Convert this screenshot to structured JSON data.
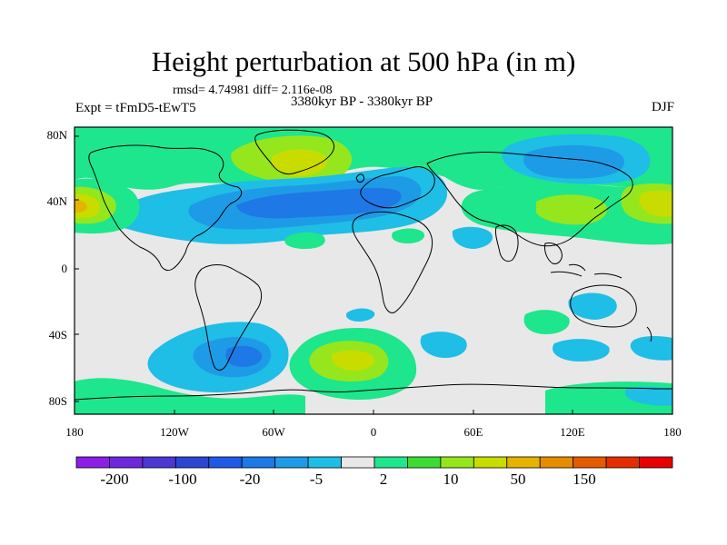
{
  "title": "Height perturbation at 500 hPa (in m)",
  "stats": "rmsd= 4.74981 diff= 2.116e-08",
  "experiment": "Expt = tFmD5-tEwT5",
  "period": "3380kyr BP - 3380kyr BP",
  "season": "DJF",
  "lat_ticks": [
    "80N",
    "40N",
    "0",
    "40S",
    "80S"
  ],
  "lon_ticks": [
    "180",
    "120W",
    "60W",
    "0",
    "60E",
    "120E",
    "180"
  ],
  "colorbar": {
    "labels": [
      "-200",
      "-100",
      "-20",
      "-5",
      "2",
      "10",
      "50",
      "150"
    ],
    "colors": [
      "#8c1ee6",
      "#6e28dc",
      "#4b37d2",
      "#2d46d2",
      "#1e5ae6",
      "#1e78e6",
      "#1e9be6",
      "#1ebee6",
      "#e8e8e8",
      "#1ee68c",
      "#3cdc32",
      "#96e61e",
      "#c8dc00",
      "#e6b400",
      "#e68c00",
      "#e65a00",
      "#e62d00",
      "#e60000"
    ]
  },
  "field_colors": {
    "neutral": "#e8e8e8",
    "light_blue": "#1ebee6",
    "mid_blue": "#1e9be6",
    "blue": "#1e78e6",
    "deep_blue": "#1e5ae6",
    "green": "#1ee68c",
    "lime": "#96e61e",
    "yellow": "#c8dc00",
    "orange": "#e6b400"
  }
}
